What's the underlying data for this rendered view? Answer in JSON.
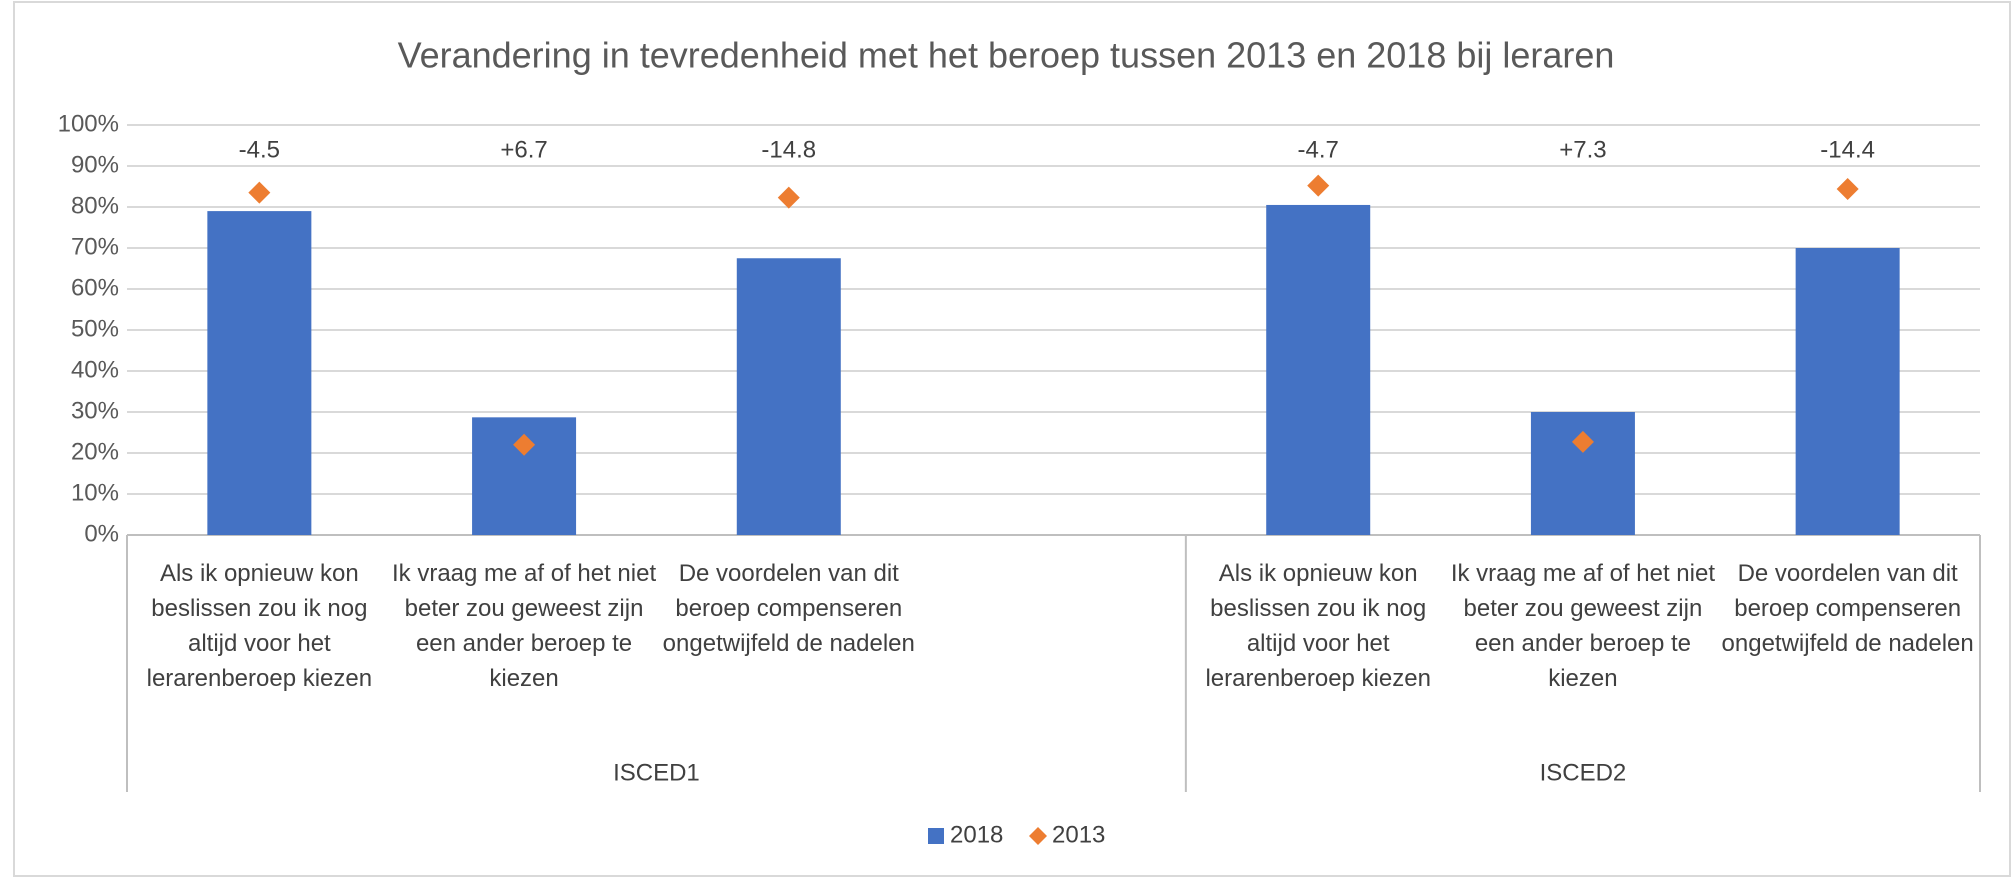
{
  "chart_data": {
    "type": "bar_scatter",
    "title": "Verandering in tevredenheid met het beroep tussen 2013 en 2018 bij leraren",
    "categories": [
      "Als ik opnieuw kon beslissen zou ik nog altijd voor het lerarenberoep kiezen",
      "Ik vraag me af of het niet beter zou geweest zijn een ander beroep te kiezen",
      "De voordelen van dit beroep compenseren ongetwijfeld de nadelen",
      null,
      "Als ik opnieuw kon beslissen zou ik nog altijd voor het lerarenberoep kiezen",
      "Ik vraag me af of het niet beter zou geweest zijn een ander beroep te kiezen",
      "De voordelen van dit beroep compenseren ongetwijfeld de nadelen"
    ],
    "groups": [
      {
        "name": "ISCED1",
        "span": 4
      },
      {
        "name": "ISCED2",
        "span": 3
      }
    ],
    "series": [
      {
        "name": "2018",
        "type": "bar",
        "color": "#4472c4",
        "values": [
          79,
          28.7,
          67.5,
          null,
          80.5,
          30,
          70
        ]
      },
      {
        "name": "2013",
        "type": "scatter",
        "marker": "diamond",
        "color": "#ed7d31",
        "values": [
          83.5,
          22,
          82.3,
          null,
          85.2,
          22.7,
          84.4
        ]
      }
    ],
    "annotations": [
      "-4.5",
      "+6.7",
      "-14.8",
      null,
      "-4.7",
      "+7.3",
      "-14.4"
    ],
    "ylim": [
      0,
      100
    ],
    "yticks": [
      {
        "value": 0,
        "label": "0%"
      },
      {
        "value": 10,
        "label": "10%"
      },
      {
        "value": 20,
        "label": "20%"
      },
      {
        "value": 30,
        "label": "30%"
      },
      {
        "value": 40,
        "label": "40%"
      },
      {
        "value": 50,
        "label": "50%"
      },
      {
        "value": 60,
        "label": "60%"
      },
      {
        "value": 70,
        "label": "70%"
      },
      {
        "value": 80,
        "label": "80%"
      },
      {
        "value": 90,
        "label": "90%"
      },
      {
        "value": 100,
        "label": "100%"
      }
    ],
    "grid": true,
    "legend": "bottom"
  }
}
